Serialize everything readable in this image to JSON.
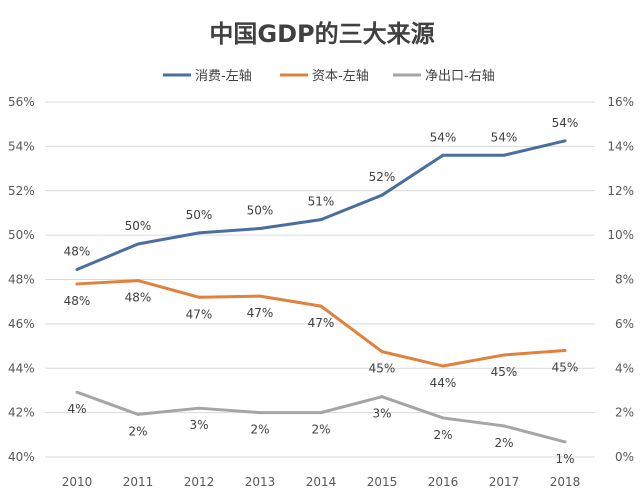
{
  "chart_data": {
    "type": "line",
    "title": "中国GDP的三大来源",
    "categories": [
      "2010",
      "2011",
      "2012",
      "2013",
      "2014",
      "2015",
      "2016",
      "2017",
      "2018"
    ],
    "left_axis": {
      "min": 40,
      "max": 56,
      "step": 2,
      "unit": "%"
    },
    "right_axis": {
      "min": 0,
      "max": 20,
      "step": 2,
      "unit": "%"
    },
    "grid": true,
    "legend_position": "top",
    "series": [
      {
        "name": "消费-左轴",
        "axis": "left",
        "color": "#4a6e9f",
        "values": [
          48.45,
          49.6,
          50.1,
          50.3,
          50.7,
          51.8,
          53.6,
          53.6,
          54.25
        ],
        "labels": [
          "48%",
          "50%",
          "50%",
          "50%",
          "51%",
          "52%",
          "54%",
          "54%",
          "54%"
        ],
        "label_pos": "above"
      },
      {
        "name": "资本-左轴",
        "axis": "left",
        "color": "#e0823d",
        "values": [
          47.8,
          47.95,
          47.2,
          47.25,
          46.8,
          44.75,
          44.1,
          44.6,
          44.8
        ],
        "labels": [
          "48%",
          "48%",
          "47%",
          "47%",
          "47%",
          "45%",
          "44%",
          "45%",
          "45%"
        ],
        "label_pos": "below"
      },
      {
        "name": "净出口-右轴",
        "axis": "right",
        "color": "#a5a5a5",
        "values": [
          3.65,
          2.4,
          2.75,
          2.5,
          2.5,
          3.4,
          2.2,
          1.75,
          0.85
        ],
        "labels": [
          "4%",
          "2%",
          "3%",
          "2%",
          "2%",
          "3%",
          "2%",
          "2%",
          "1%"
        ],
        "label_pos": "below"
      }
    ]
  }
}
